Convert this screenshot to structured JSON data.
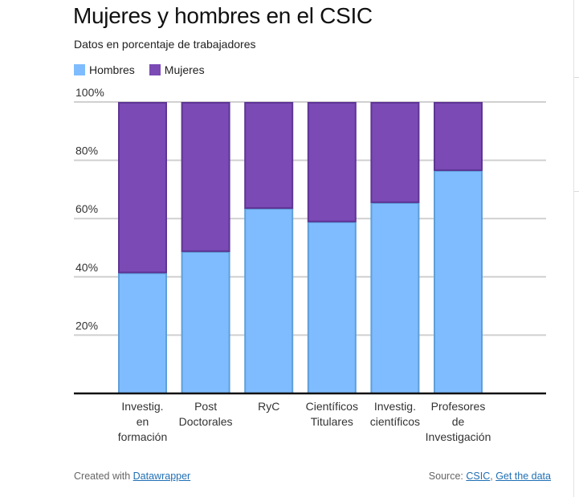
{
  "header": {
    "title": "Mujeres y hombres en el CSIC",
    "subtitle": "Datos en porcentaje de trabajadores"
  },
  "legend": [
    {
      "label": "Hombres",
      "color": "#7fbcff"
    },
    {
      "label": "Mujeres",
      "color": "#7b4ab5"
    }
  ],
  "footer": {
    "created_prefix": "Created with ",
    "created_link": "Datawrapper",
    "source_prefix": "Source: ",
    "source_link": "CSIC",
    "separator": ", ",
    "data_link": "Get the data"
  },
  "chart_data": {
    "type": "bar",
    "stacked": true,
    "title": "Mujeres y hombres en el CSIC",
    "subtitle": "Datos en porcentaje de trabajadores",
    "xlabel": "",
    "ylabel": "",
    "ylim": [
      0,
      100
    ],
    "grid": true,
    "legend_position": "top-left",
    "yticks": [
      20,
      40,
      60,
      80,
      100
    ],
    "ytick_labels": [
      "20%",
      "40%",
      "60%",
      "80%",
      "100%"
    ],
    "categories": [
      [
        "Investig.",
        "en",
        "formación"
      ],
      [
        "Post",
        "Doctorales"
      ],
      [
        "RyC"
      ],
      [
        "Científicos",
        "Titulares"
      ],
      [
        "Investig.",
        "científicos"
      ],
      [
        "Profesores",
        "de",
        "Investigación"
      ]
    ],
    "series": [
      {
        "name": "Hombres",
        "color": "#7fbcff",
        "edge": "#5f9fd9",
        "values": [
          41.5,
          48.8,
          63.6,
          59.0,
          65.6,
          76.6
        ]
      },
      {
        "name": "Mujeres",
        "color": "#7b4ab5",
        "edge": "#5e3594",
        "values": [
          58.5,
          51.2,
          36.4,
          41.0,
          34.4,
          23.4
        ]
      }
    ]
  }
}
